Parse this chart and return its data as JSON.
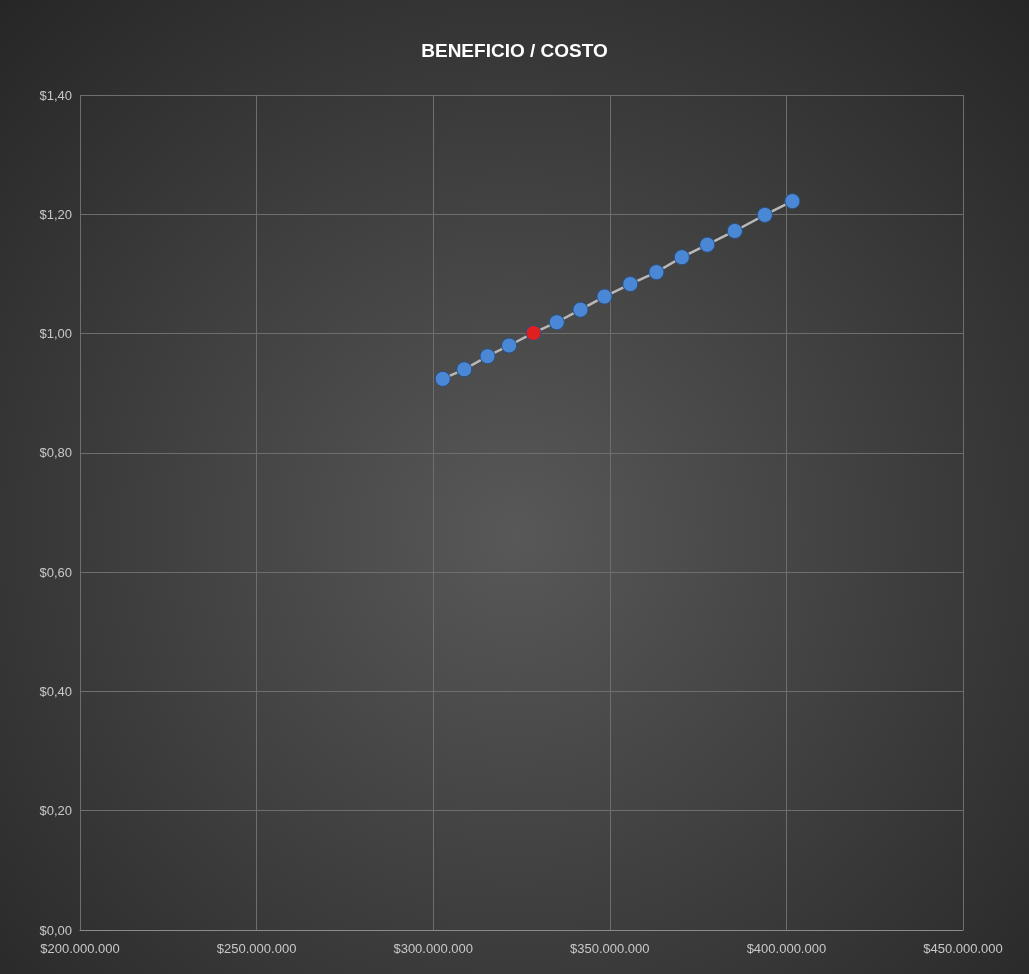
{
  "chart_data": {
    "type": "line",
    "title": "BENEFICIO / COSTO",
    "x": [
      302700000,
      308800000,
      315400000,
      321500000,
      328400000,
      335000000,
      341700000,
      348500000,
      355800000,
      363200000,
      370400000,
      377600000,
      385400000,
      393900000,
      401700000
    ],
    "series": [
      {
        "colors": [
          "#4a88d6",
          "#4a88d6",
          "#4a88d6",
          "#4a88d6",
          "#e02020",
          "#4a88d6",
          "#4a88d6",
          "#4a88d6",
          "#4a88d6",
          "#4a88d6",
          "#4a88d6",
          "#4a88d6",
          "#4a88d6",
          "#4a88d6",
          "#4a88d6"
        ],
        "values": [
          0.924,
          0.94,
          0.962,
          0.98,
          1.001,
          1.019,
          1.04,
          1.062,
          1.083,
          1.103,
          1.128,
          1.149,
          1.172,
          1.199,
          1.222
        ]
      }
    ],
    "xlim": [
      200000000,
      450000000
    ],
    "xticks": [
      {
        "value": 200000000,
        "label": "$200.000.000"
      },
      {
        "value": 250000000,
        "label": "$250.000.000"
      },
      {
        "value": 300000000,
        "label": "$300.000.000"
      },
      {
        "value": 350000000,
        "label": "$350.000.000"
      },
      {
        "value": 400000000,
        "label": "$400.000.000"
      },
      {
        "value": 450000000,
        "label": "$450.000.000"
      }
    ],
    "ylim": [
      0,
      1.4
    ],
    "yticks": [
      {
        "value": 0,
        "label": "$0,00"
      },
      {
        "value": 0.2,
        "label": "$0,20"
      },
      {
        "value": 0.4,
        "label": "$0,40"
      },
      {
        "value": 0.6,
        "label": "$0,60"
      },
      {
        "value": 0.8,
        "label": "$0,80"
      },
      {
        "value": 1,
        "label": "$1,00"
      },
      {
        "value": 1.2,
        "label": "$1,20"
      },
      {
        "value": 1.4,
        "label": "$1,40"
      }
    ],
    "grid": true,
    "marker": "circle",
    "line_style": "solid"
  }
}
